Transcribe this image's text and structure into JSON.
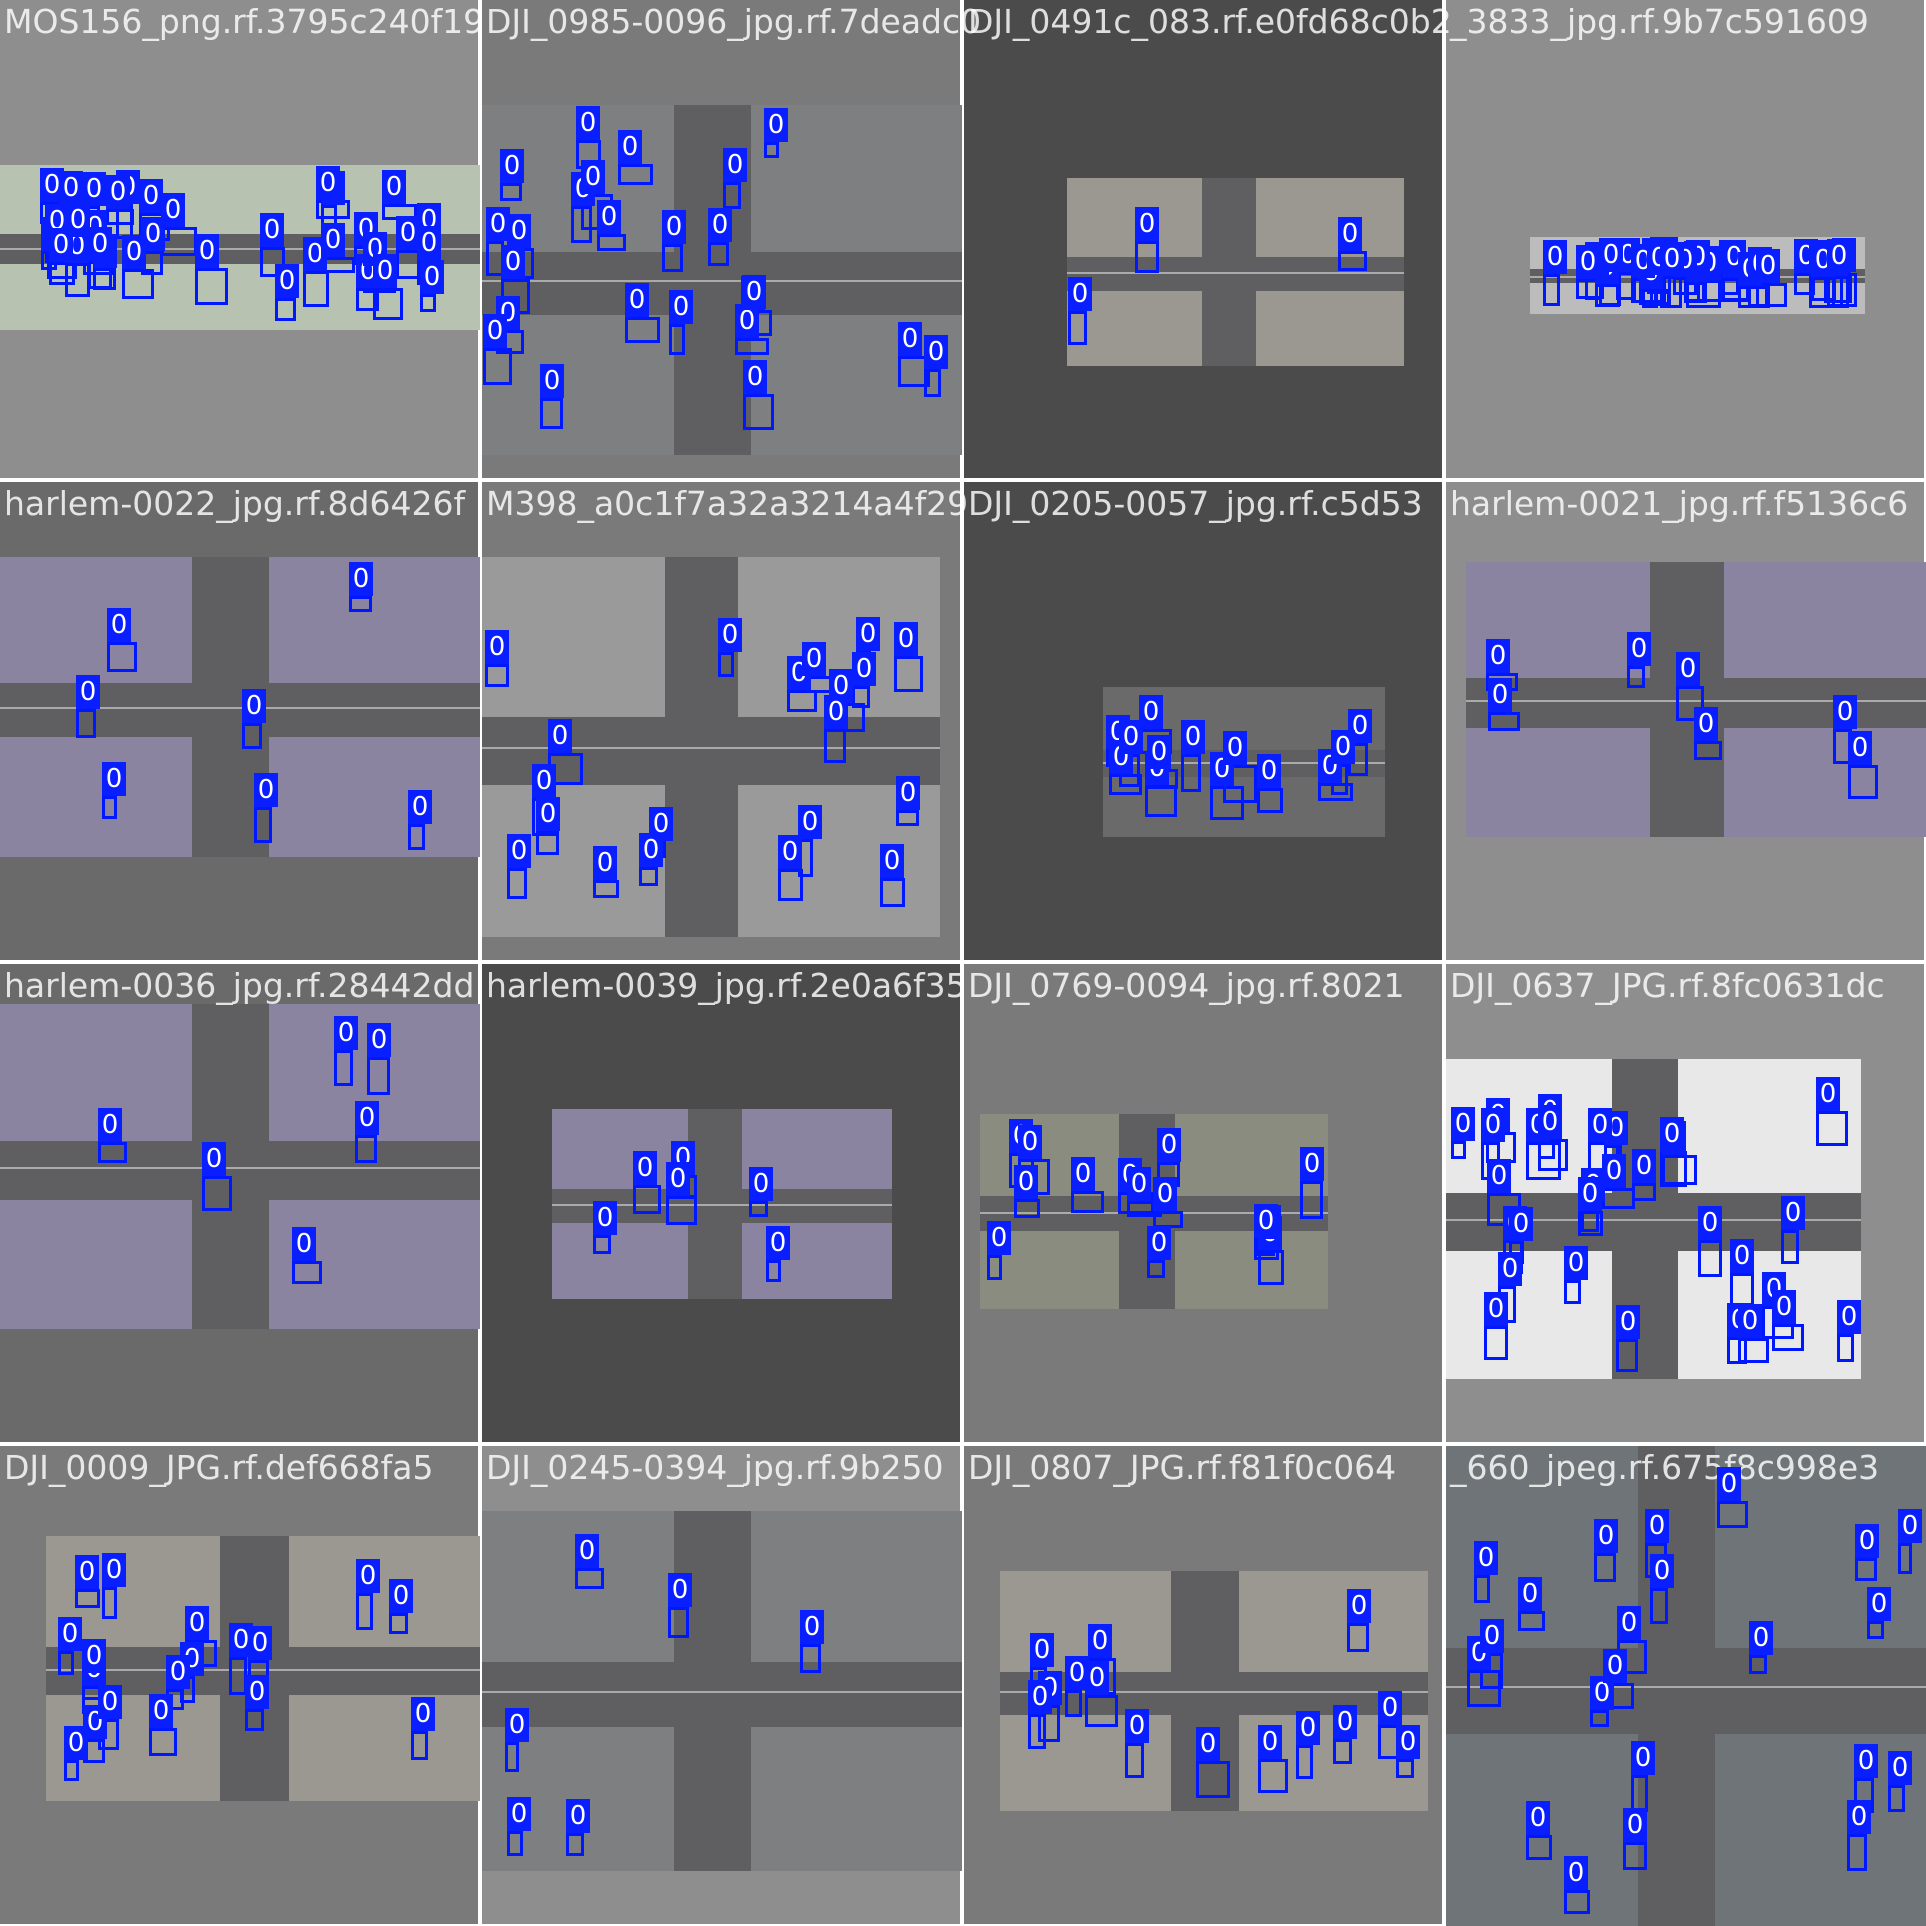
{
  "mosaic": {
    "label_class": "0",
    "box_color": "#0018ff",
    "tiles": [
      {
        "title": "MOS156_png.rf.3795c240f19",
        "background": "#8e8e8e",
        "photo_tone": "#b8c2b0",
        "detections": 34
      },
      {
        "title": "DJI_0985-0096_jpg.rf.7deadc0",
        "background": "#7a7a7a",
        "photo_tone": "#7d7f80",
        "detections": 24
      },
      {
        "title": "DJI_0491c_083.rf.e0fd68c0b2",
        "background": "#4b4b4b",
        "photo_tone": "#9a9890",
        "detections": 3
      },
      {
        "title": "_3833_jpg.rf.9b7c591609",
        "background": "#8e8e8e",
        "photo_tone": "#bcbcbc",
        "detections": 30
      },
      {
        "title": "harlem-0022_jpg.rf.8d6426f",
        "background": "#6a6a6a",
        "photo_tone": "#8a84a0",
        "detections": 7
      },
      {
        "title": "M398_a0c1f7a32a3214a4f29",
        "background": "#7a7a7a",
        "photo_tone": "#9a9a9a",
        "detections": 20
      },
      {
        "title": "DJI_0205-0057_jpg.rf.c5d53",
        "background": "#4b4b4b",
        "photo_tone": "#6a6a6a",
        "detections": 13
      },
      {
        "title": "harlem-0021_jpg.rf.f5136c6",
        "background": "#8e8e8e",
        "photo_tone": "#8a84a0",
        "detections": 7
      },
      {
        "title": "harlem-0036_jpg.rf.28442dd",
        "background": "#6a6a6a",
        "photo_tone": "#8a84a0",
        "detections": 6
      },
      {
        "title": "harlem-0039_jpg.rf.2e0a6f35",
        "background": "#4b4b4b",
        "photo_tone": "#8a84a0",
        "detections": 6
      },
      {
        "title": "DJI_0769-0094_jpg.rf.8021",
        "background": "#7a7a7a",
        "photo_tone": "#8a8c80",
        "detections": 14
      },
      {
        "title": "DJI_0637_JPG.rf.8fc0631dc",
        "background": "#8e8e8e",
        "photo_tone": "#e8e8e8",
        "detections": 30
      },
      {
        "title": "DJI_0009_JPG.rf.def668fa5",
        "background": "#7a7a7a",
        "photo_tone": "#9a9890",
        "detections": 18
      },
      {
        "title": "DJI_0245-0394_jpg.rf.9b250",
        "background": "#8e8e8e",
        "photo_tone": "#7d7f80",
        "detections": 6
      },
      {
        "title": "DJI_0807_JPG.rf.f81f0c064",
        "background": "#7a7a7a",
        "photo_tone": "#9a9890",
        "detections": 14
      },
      {
        "title": "_660_jpeg.rf.675f8c998e3",
        "background": "#8e8e8e",
        "photo_tone": "#6e7478",
        "detections": 22
      }
    ]
  }
}
